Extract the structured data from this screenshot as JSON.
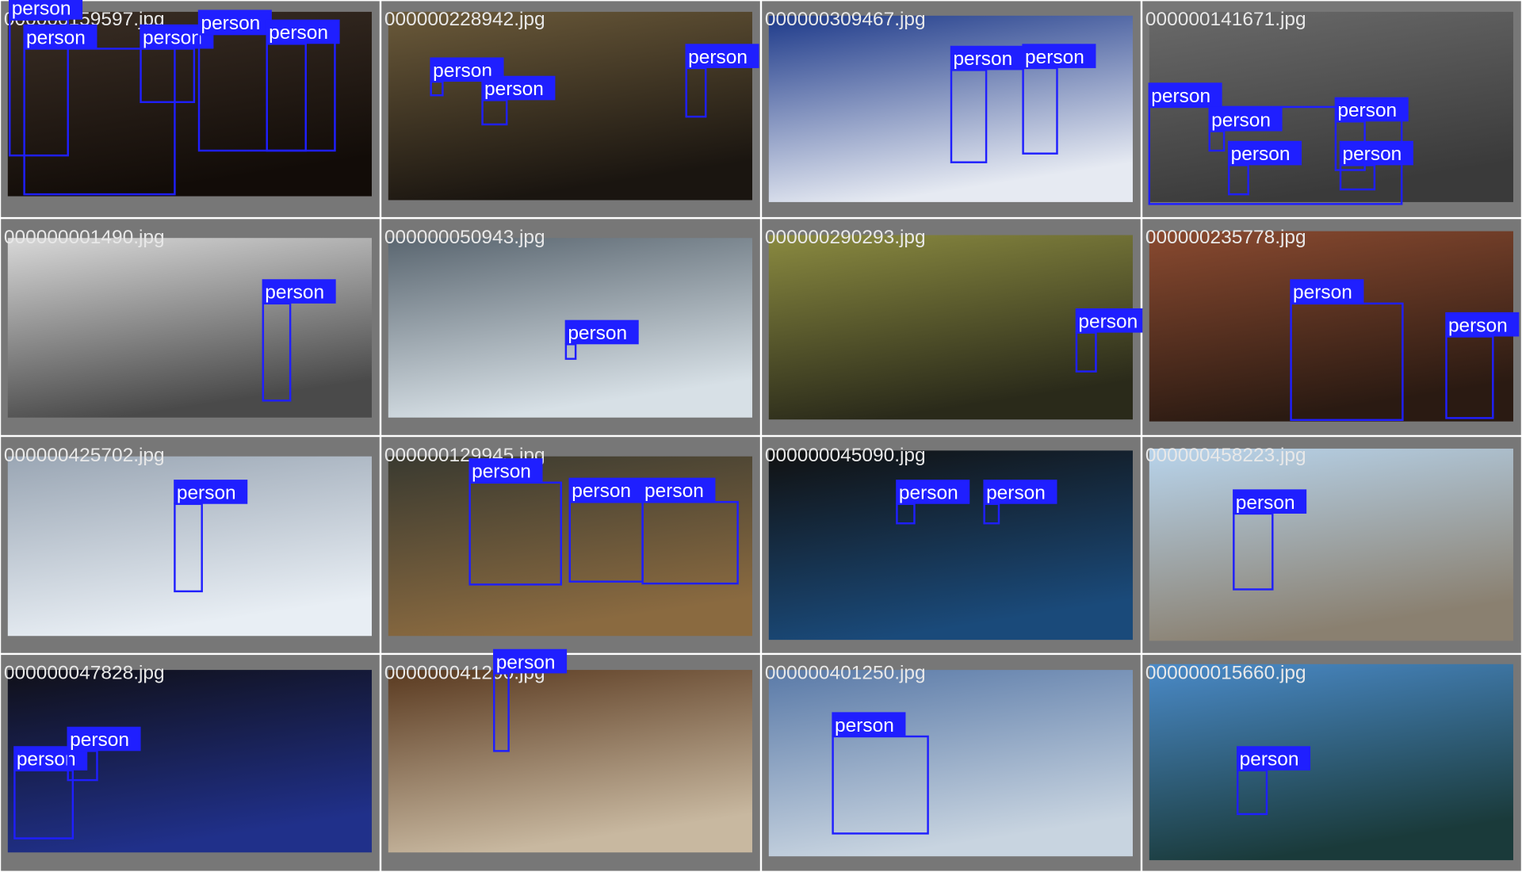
{
  "tiles": [
    {
      "filename": "000000159597.jpg",
      "labels": [
        "person",
        "person",
        "person",
        "person",
        "person"
      ]
    },
    {
      "filename": "000000228942.jpg",
      "labels": [
        "person",
        "person",
        "person"
      ]
    },
    {
      "filename": "000000309467.jpg",
      "labels": [
        "person",
        "person"
      ]
    },
    {
      "filename": "000000141671.jpg",
      "labels": [
        "person",
        "person",
        "person",
        "person",
        "person"
      ]
    },
    {
      "filename": "000000001490.jpg",
      "labels": [
        "person"
      ]
    },
    {
      "filename": "000000050943.jpg",
      "labels": [
        "person"
      ]
    },
    {
      "filename": "000000290293.jpg",
      "labels": [
        "person"
      ]
    },
    {
      "filename": "000000235778.jpg",
      "labels": [
        "person",
        "person"
      ]
    },
    {
      "filename": "000000425702.jpg",
      "labels": [
        "person"
      ]
    },
    {
      "filename": "000000129945.jpg",
      "labels": [
        "person",
        "person",
        "person"
      ]
    },
    {
      "filename": "000000045090.jpg",
      "labels": [
        "person",
        "person"
      ]
    },
    {
      "filename": "000000458223.jpg",
      "labels": [
        "person"
      ]
    },
    {
      "filename": "000000047828.jpg",
      "labels": [
        "person",
        "person"
      ]
    },
    {
      "filename": "000000041290.jpg",
      "labels": [
        "person"
      ]
    },
    {
      "filename": "000000401250.jpg",
      "labels": [
        "person"
      ]
    },
    {
      "filename": "000000015660.jpg",
      "labels": [
        "person"
      ]
    }
  ]
}
